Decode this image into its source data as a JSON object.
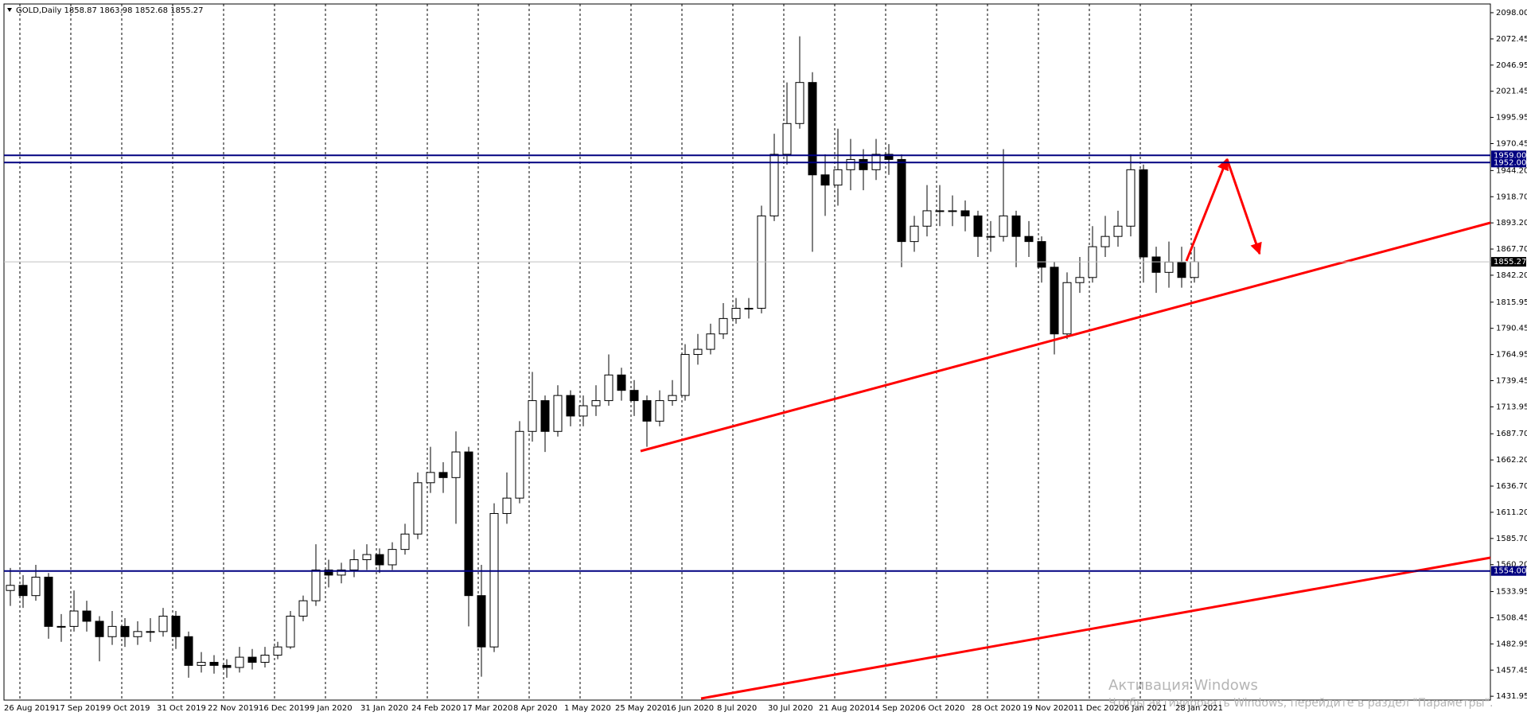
{
  "chart_data": {
    "type": "candlestick",
    "header": "GOLD,Daily  1858.87 1863.98 1852.68 1855.27",
    "x_labels": [
      "26 Aug 2019",
      "17 Sep 2019",
      "9 Oct 2019",
      "31 Oct 2019",
      "22 Nov 2019",
      "16 Dec 2019",
      "9 Jan 2020",
      "31 Jan 2020",
      "24 Feb 2020",
      "17 Mar 2020",
      "8 Apr 2020",
      "1 May 2020",
      "25 May 2020",
      "16 Jun 2020",
      "8 Jul 2020",
      "30 Jul 2020",
      "21 Aug 2020",
      "14 Sep 2020",
      "6 Oct 2020",
      "28 Oct 2020",
      "19 Nov 2020",
      "11 Dec 2020",
      "6 Jan 2021",
      "28 Jan 2021"
    ],
    "open": [
      1535,
      1540,
      1530,
      1548,
      1500,
      1500,
      1515,
      1505,
      1490,
      1500,
      1490,
      1495,
      1495,
      1510,
      1490,
      1462,
      1465,
      1462,
      1460,
      1470,
      1465,
      1472,
      1480,
      1510,
      1525,
      1555,
      1550,
      1555,
      1565,
      1570,
      1560,
      1575,
      1590,
      1640,
      1650,
      1645,
      1670,
      1530,
      1480,
      1610,
      1625,
      1690,
      1720,
      1690,
      1725,
      1705,
      1715,
      1720,
      1745,
      1730,
      1720,
      1700,
      1720,
      1725,
      1765,
      1770,
      1785,
      1800,
      1810,
      1810,
      1900,
      1960,
      1990,
      2030,
      1940,
      1930,
      1945,
      1955,
      1945,
      1960,
      1955,
      1875,
      1890,
      1905,
      1905,
      1905,
      1900,
      1880,
      1880,
      1900,
      1880,
      1875,
      1850,
      1785,
      1835,
      1840,
      1870,
      1880,
      1890,
      1945,
      1860,
      1845,
      1855,
      1840
    ],
    "high": [
      1557,
      1550,
      1560,
      1552,
      1512,
      1535,
      1525,
      1510,
      1515,
      1508,
      1505,
      1508,
      1518,
      1515,
      1495,
      1475,
      1472,
      1468,
      1480,
      1478,
      1480,
      1485,
      1515,
      1530,
      1580,
      1565,
      1562,
      1575,
      1580,
      1576,
      1582,
      1600,
      1650,
      1675,
      1660,
      1690,
      1675,
      1560,
      1620,
      1650,
      1700,
      1748,
      1725,
      1735,
      1730,
      1725,
      1735,
      1765,
      1752,
      1740,
      1725,
      1730,
      1740,
      1775,
      1785,
      1795,
      1815,
      1820,
      1820,
      1910,
      1980,
      2030,
      2075,
      2040,
      1960,
      1985,
      1975,
      1965,
      1975,
      1970,
      1960,
      1900,
      1930,
      1930,
      1920,
      1915,
      1905,
      1895,
      1965,
      1905,
      1895,
      1880,
      1855,
      1845,
      1860,
      1890,
      1900,
      1905,
      1960,
      1950,
      1870,
      1875,
      1870,
      1870
    ],
    "low": [
      1520,
      1518,
      1525,
      1488,
      1485,
      1495,
      1495,
      1466,
      1482,
      1480,
      1482,
      1485,
      1490,
      1478,
      1450,
      1455,
      1454,
      1450,
      1455,
      1458,
      1460,
      1468,
      1478,
      1505,
      1520,
      1538,
      1542,
      1548,
      1555,
      1552,
      1555,
      1570,
      1585,
      1630,
      1630,
      1600,
      1500,
      1451,
      1475,
      1600,
      1620,
      1680,
      1670,
      1685,
      1695,
      1695,
      1705,
      1715,
      1720,
      1705,
      1675,
      1695,
      1715,
      1720,
      1755,
      1765,
      1780,
      1795,
      1800,
      1805,
      1895,
      1950,
      1985,
      1865,
      1900,
      1910,
      1925,
      1925,
      1935,
      1940,
      1850,
      1865,
      1880,
      1890,
      1890,
      1885,
      1860,
      1865,
      1875,
      1850,
      1860,
      1835,
      1765,
      1780,
      1825,
      1835,
      1860,
      1870,
      1880,
      1835,
      1825,
      1830,
      1830,
      1835
    ],
    "close": [
      1540,
      1530,
      1548,
      1500,
      1500,
      1515,
      1505,
      1490,
      1500,
      1490,
      1495,
      1495,
      1510,
      1490,
      1462,
      1465,
      1462,
      1460,
      1470,
      1465,
      1472,
      1480,
      1510,
      1525,
      1555,
      1550,
      1555,
      1565,
      1570,
      1560,
      1575,
      1590,
      1640,
      1650,
      1645,
      1670,
      1530,
      1480,
      1610,
      1625,
      1690,
      1720,
      1690,
      1725,
      1705,
      1715,
      1720,
      1745,
      1730,
      1720,
      1700,
      1720,
      1725,
      1765,
      1770,
      1785,
      1800,
      1810,
      1810,
      1900,
      1960,
      1990,
      2030,
      1940,
      1930,
      1945,
      1955,
      1945,
      1960,
      1955,
      1875,
      1890,
      1905,
      1905,
      1905,
      1900,
      1880,
      1880,
      1900,
      1880,
      1875,
      1850,
      1785,
      1835,
      1840,
      1870,
      1880,
      1890,
      1945,
      1860,
      1845,
      1855,
      1840,
      1855.27
    ],
    "ylim": [
      1428.2,
      2106.5
    ],
    "yticks": [
      {
        "value": 2098,
        "label": "2098.00"
      },
      2072.45,
      2046.95,
      2021.45,
      1995.95,
      1970.45,
      {
        "value": 1944.2,
        "label": "1944.20"
      },
      {
        "value": 1918.7,
        "label": "1918.70"
      },
      {
        "value": 1893.2,
        "label": "1893.20"
      },
      {
        "value": 1867.7,
        "label": "1867.70"
      },
      {
        "value": 1842.2,
        "label": "1842.20"
      },
      1815.95,
      1790.45,
      1764.95,
      1739.45,
      1713.95,
      {
        "value": 1687.7,
        "label": "1687.70"
      },
      {
        "value": 1662.2,
        "label": "1662.20"
      },
      {
        "value": 1636.7,
        "label": "1636.70"
      },
      {
        "value": 1611.2,
        "label": "1611.20"
      },
      {
        "value": 1585.7,
        "label": "1585.70"
      },
      {
        "value": 1560.2,
        "label": "1560.20"
      },
      1533.95,
      1508.45,
      1482.95,
      1457.45,
      1431.95
    ],
    "levels": [
      {
        "value": 1959,
        "label": "1959.00"
      },
      {
        "value": 1952,
        "label": "1952.00"
      },
      {
        "value": 1554,
        "label": "1554.00"
      }
    ],
    "level_color": "#000080",
    "current_price": 1855.27,
    "watermark": [
      "Активация Windows",
      "Чтобы активировать Windows, перейдите в раздел \"Параметры\"."
    ]
  }
}
